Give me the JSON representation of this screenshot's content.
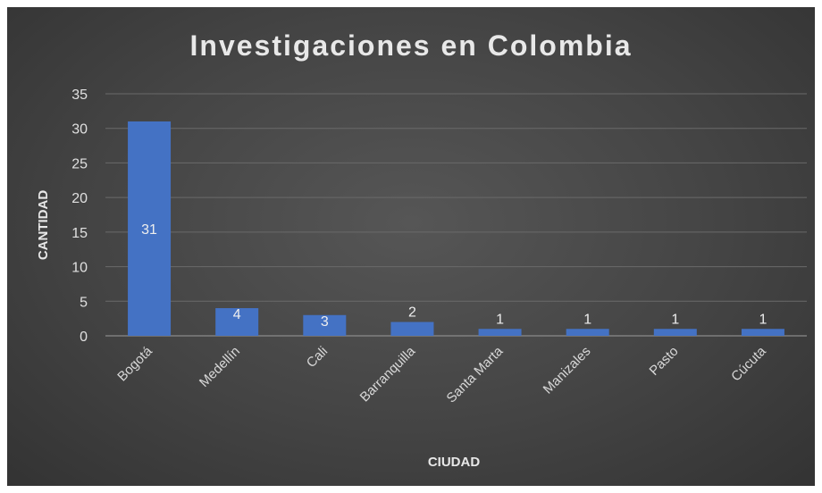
{
  "chart_data": {
    "type": "bar",
    "title": "Investigaciones en Colombia",
    "xlabel": "CIUDAD",
    "ylabel": "CANTIDAD",
    "categories": [
      "Bogotá",
      "Medellín",
      "Cali",
      "Barranquilla",
      "Santa Marta",
      "Manizales",
      "Pasto",
      "Cúcuta"
    ],
    "values": [
      31,
      4,
      3,
      2,
      1,
      1,
      1,
      1
    ],
    "ylim": [
      0,
      35
    ],
    "yticks": [
      0,
      5,
      10,
      15,
      20,
      25,
      30,
      35
    ],
    "grid": true,
    "legend": "none",
    "colors": {
      "bar": "#4472c4",
      "background": "#474747",
      "text": "#e8e8e8"
    }
  }
}
